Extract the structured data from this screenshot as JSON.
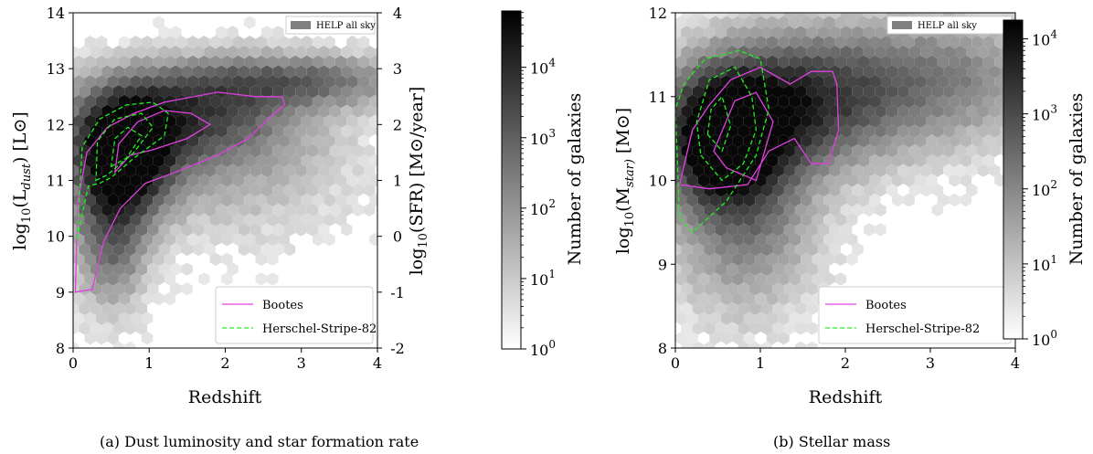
{
  "chart_data": [
    {
      "type": "heatmap",
      "panel": "a",
      "caption": "(a)  Dust luminosity and star formation rate",
      "xlabel": "Redshift",
      "ylabel": "log10(Ldust) [L⊙]",
      "ylabel_parts": {
        "pre": "log",
        "sub1": "10",
        "mid": "(L",
        "sub2": "dust",
        "post": ") [L⊙]"
      },
      "ylabel_right": "log10(SFR) [M⊙/year]",
      "ylabel_right_parts": {
        "pre": "log",
        "sub1": "10",
        "post": "(SFR) [M⊙/year]"
      },
      "xlim": [
        0,
        4
      ],
      "ylim": [
        8,
        14
      ],
      "xticks": [
        "0",
        "1",
        "2",
        "3",
        "4"
      ],
      "yticks": [
        "8",
        "9",
        "10",
        "11",
        "12",
        "13",
        "14"
      ],
      "yticks_right": [
        "-2",
        "-1",
        "0",
        "1",
        "2",
        "3",
        "4"
      ],
      "heatmap_legend": "HELP all sky",
      "colorbar_label": "Number of galaxies",
      "colorbar_ticks": [
        "10",
        "10",
        "10",
        "10",
        "10"
      ],
      "colorbar_exponents": [
        "0",
        "1",
        "2",
        "3",
        "4"
      ],
      "colorbar_log_range": [
        0,
        4.8
      ],
      "density_model": {
        "components": [
          {
            "x": 0.65,
            "y": 11.45,
            "sx": 0.45,
            "sy": 0.7,
            "w": 1.0
          },
          {
            "x": 1.4,
            "y": 12.2,
            "sx": 1.0,
            "sy": 0.6,
            "w": 0.6
          },
          {
            "x": 3.0,
            "y": 12.8,
            "sx": 1.1,
            "sy": 0.35,
            "w": 0.45
          },
          {
            "x": 0.5,
            "y": 10.0,
            "sx": 0.35,
            "sy": 0.9,
            "w": 0.5
          },
          {
            "x": 2.0,
            "y": 11.2,
            "sx": 1.2,
            "sy": 0.9,
            "w": 0.22
          }
        ]
      },
      "series": [
        {
          "name": "Bootes",
          "color": "#e040e0",
          "style": "solid",
          "contours": [
            [
              [
                0.03,
                9.0
              ],
              [
                0.25,
                9.05
              ],
              [
                0.4,
                9.9
              ],
              [
                0.62,
                10.5
              ],
              [
                0.95,
                10.95
              ],
              [
                1.35,
                11.15
              ],
              [
                1.9,
                11.45
              ],
              [
                2.3,
                11.75
              ],
              [
                2.6,
                12.15
              ],
              [
                2.78,
                12.35
              ],
              [
                2.75,
                12.5
              ],
              [
                2.4,
                12.5
              ],
              [
                1.9,
                12.58
              ],
              [
                1.2,
                12.4
              ],
              [
                0.8,
                12.2
              ],
              [
                0.45,
                11.95
              ],
              [
                0.18,
                11.5
              ],
              [
                0.06,
                10.6
              ],
              [
                0.03,
                9.0
              ]
            ],
            [
              [
                0.55,
                11.15
              ],
              [
                0.75,
                11.45
              ],
              [
                1.05,
                11.55
              ],
              [
                1.5,
                11.75
              ],
              [
                1.8,
                12.0
              ],
              [
                1.55,
                12.2
              ],
              [
                1.2,
                12.25
              ],
              [
                0.85,
                12.05
              ],
              [
                0.6,
                11.65
              ],
              [
                0.55,
                11.15
              ]
            ]
          ]
        },
        {
          "name": "Herschel-Stripe-82",
          "color": "#22ee22",
          "style": "dashed",
          "contours": [
            [
              [
                0.05,
                9.95
              ],
              [
                0.2,
                10.9
              ],
              [
                0.35,
                10.95
              ],
              [
                0.5,
                11.05
              ],
              [
                0.8,
                11.4
              ],
              [
                1.2,
                11.8
              ],
              [
                1.25,
                12.2
              ],
              [
                1.05,
                12.4
              ],
              [
                0.7,
                12.35
              ],
              [
                0.35,
                12.1
              ],
              [
                0.12,
                11.6
              ],
              [
                0.05,
                9.95
              ]
            ],
            [
              [
                0.3,
                11.0
              ],
              [
                0.45,
                11.1
              ],
              [
                0.8,
                11.5
              ],
              [
                1.05,
                11.95
              ],
              [
                0.9,
                12.2
              ],
              [
                0.55,
                12.1
              ],
              [
                0.32,
                11.7
              ],
              [
                0.3,
                11.0
              ]
            ],
            [
              [
                0.5,
                11.25
              ],
              [
                0.7,
                11.4
              ],
              [
                0.9,
                11.8
              ],
              [
                0.72,
                11.95
              ],
              [
                0.55,
                11.75
              ],
              [
                0.5,
                11.25
              ]
            ]
          ]
        }
      ],
      "legend_position": "lower-right"
    },
    {
      "type": "heatmap",
      "panel": "b",
      "caption": "(b)  Stellar mass",
      "xlabel": "Redshift",
      "ylabel": "log10(Mstar) [M⊙]",
      "ylabel_parts": {
        "pre": "log",
        "sub1": "10",
        "mid": "(M",
        "sub2": "star)",
        "post": " [M⊙]"
      },
      "xlim": [
        0,
        4
      ],
      "ylim": [
        8,
        12
      ],
      "xticks": [
        "0",
        "1",
        "2",
        "3",
        "4"
      ],
      "yticks": [
        "8",
        "9",
        "10",
        "11",
        "12"
      ],
      "heatmap_legend": "HELP all sky",
      "colorbar_label": "Number of galaxies",
      "colorbar_ticks": [
        "10",
        "10",
        "10",
        "10",
        "10"
      ],
      "colorbar_exponents": [
        "0",
        "1",
        "2",
        "3",
        "4"
      ],
      "colorbar_log_range": [
        0,
        4.25
      ],
      "density_model": {
        "components": [
          {
            "x": 0.55,
            "y": 10.5,
            "sx": 0.45,
            "sy": 0.5,
            "w": 1.0
          },
          {
            "x": 1.3,
            "y": 10.9,
            "sx": 0.8,
            "sy": 0.55,
            "w": 0.55
          },
          {
            "x": 2.3,
            "y": 11.1,
            "sx": 1.3,
            "sy": 0.6,
            "w": 0.3
          },
          {
            "x": 0.8,
            "y": 9.6,
            "sx": 0.6,
            "sy": 0.8,
            "w": 0.45
          },
          {
            "x": 3.3,
            "y": 11.3,
            "sx": 0.9,
            "sy": 0.5,
            "w": 0.2
          }
        ]
      },
      "series": [
        {
          "name": "Bootes",
          "color": "#e040e0",
          "style": "solid",
          "contours": [
            [
              [
                0.05,
                9.95
              ],
              [
                0.4,
                9.9
              ],
              [
                0.85,
                9.95
              ],
              [
                1.1,
                10.35
              ],
              [
                1.4,
                10.5
              ],
              [
                1.6,
                10.2
              ],
              [
                1.8,
                10.2
              ],
              [
                1.92,
                10.6
              ],
              [
                1.9,
                11.15
              ],
              [
                1.85,
                11.3
              ],
              [
                1.6,
                11.3
              ],
              [
                1.35,
                11.15
              ],
              [
                1.0,
                11.35
              ],
              [
                0.65,
                11.2
              ],
              [
                0.4,
                10.9
              ],
              [
                0.2,
                10.6
              ],
              [
                0.05,
                9.95
              ]
            ],
            [
              [
                0.45,
                10.35
              ],
              [
                0.6,
                10.15
              ],
              [
                0.95,
                10.0
              ],
              [
                1.15,
                10.7
              ],
              [
                0.95,
                11.05
              ],
              [
                0.7,
                10.95
              ],
              [
                0.45,
                10.35
              ]
            ]
          ]
        },
        {
          "name": "Herschel-Stripe-82",
          "color": "#22ee22",
          "style": "dashed",
          "contours": [
            [
              [
                0.05,
                9.55
              ],
              [
                0.2,
                9.38
              ],
              [
                0.6,
                9.75
              ],
              [
                0.95,
                10.3
              ],
              [
                1.1,
                10.85
              ],
              [
                1.0,
                11.45
              ],
              [
                0.75,
                11.55
              ],
              [
                0.35,
                11.45
              ],
              [
                0.1,
                11.15
              ],
              [
                0.0,
                10.85
              ],
              [
                0.05,
                9.55
              ]
            ],
            [
              [
                0.3,
                10.3
              ],
              [
                0.55,
                10.0
              ],
              [
                0.8,
                10.2
              ],
              [
                0.95,
                10.6
              ],
              [
                0.9,
                11.0
              ],
              [
                0.7,
                11.35
              ],
              [
                0.4,
                11.2
              ],
              [
                0.25,
                10.7
              ],
              [
                0.3,
                10.3
              ]
            ],
            [
              [
                0.38,
                10.55
              ],
              [
                0.55,
                10.35
              ],
              [
                0.65,
                10.65
              ],
              [
                0.55,
                11.0
              ],
              [
                0.42,
                10.85
              ],
              [
                0.38,
                10.55
              ]
            ]
          ]
        }
      ],
      "legend_position": "lower-right"
    }
  ]
}
